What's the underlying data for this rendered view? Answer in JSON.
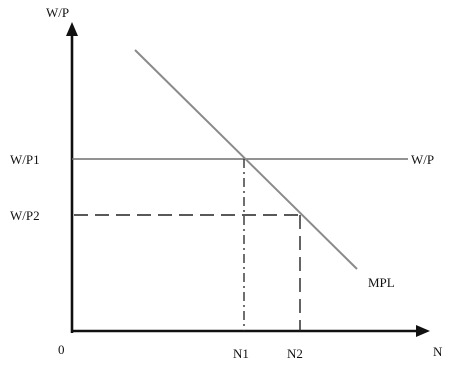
{
  "chart_data": {
    "type": "line",
    "title": "",
    "xlabel": "N",
    "ylabel": "W/P",
    "origin_label": "0",
    "x_ticks": [
      "N1",
      "N2"
    ],
    "y_ticks": [
      "W/P1",
      "W/P2"
    ],
    "series": [
      {
        "name": "MPL",
        "kind": "downward-sloping labour demand line"
      },
      {
        "name": "W/P",
        "kind": "horizontal real wage line at W/P1"
      }
    ],
    "reference_lines": [
      {
        "from": "W/P1",
        "to": "N1",
        "style": "dash-dot"
      },
      {
        "from": "W/P2",
        "to": "N2",
        "style": "dashed"
      }
    ],
    "grid": false,
    "legend": "none",
    "colors": {
      "axis": "#111111",
      "mpl": "#8a8a8a",
      "wage": "#6e6e6e",
      "guide": "#222222"
    }
  }
}
